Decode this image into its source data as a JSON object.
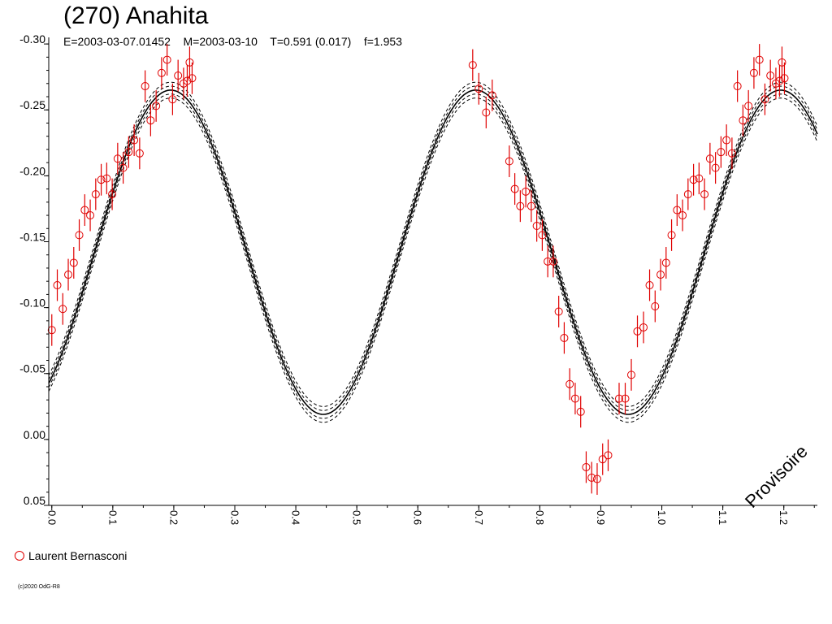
{
  "title": "(270) Anahita",
  "subtitle": "E=2003-03-07.01452    M=2003-03-10    T=0.591 (0.017)    f=1.953",
  "watermark": "Provisoire",
  "legend_label": "Laurent Bernasconi",
  "copyright": "(c)2020 OdG-R8",
  "colors": {
    "data": "#e00000",
    "model": "#000000",
    "axis": "#000000"
  },
  "chart_data": {
    "type": "scatter",
    "x_range": [
      -0.005,
      1.255
    ],
    "y_range": [
      -0.305,
      0.05
    ],
    "y_inverted": true,
    "x_ticks": [
      0.0,
      0.1,
      0.2,
      0.3,
      0.4,
      0.5,
      0.6,
      0.7,
      0.8,
      0.9,
      1.0,
      1.1,
      1.2
    ],
    "x_tick_labels": [
      "0.0",
      "0.1",
      "0.2",
      "0.3",
      "0.4",
      "0.5",
      "0.6",
      "0.7",
      "0.8",
      "0.9",
      "1.0",
      "1.1",
      "1.2"
    ],
    "y_ticks": [
      -0.3,
      -0.25,
      -0.2,
      -0.15,
      -0.1,
      -0.05,
      0.0,
      0.05
    ],
    "y_tick_labels": [
      "-0.30",
      "-0.25",
      "-0.20",
      "-0.15",
      "-0.10",
      "-0.05",
      "0.00",
      "0.05"
    ],
    "model": {
      "type": "line",
      "mean": -0.142,
      "amplitude": 0.123,
      "phase_of_maximum": 0.195,
      "period_in_phase": 0.5,
      "band_offsets": [
        -0.006,
        -0.003,
        0.003,
        0.006
      ]
    },
    "series": [
      {
        "name": "Laurent Bernasconi",
        "error": 0.012,
        "points": [
          [
            0.0,
            -0.083
          ],
          [
            0.009,
            -0.117
          ],
          [
            0.018,
            -0.099
          ],
          [
            0.027,
            -0.125
          ],
          [
            0.036,
            -0.134
          ],
          [
            0.045,
            -0.155
          ],
          [
            0.054,
            -0.174
          ],
          [
            0.063,
            -0.17
          ],
          [
            0.072,
            -0.186
          ],
          [
            0.081,
            -0.197
          ],
          [
            0.09,
            -0.198
          ],
          [
            0.099,
            -0.186
          ],
          [
            0.108,
            -0.213
          ],
          [
            0.117,
            -0.206
          ],
          [
            0.126,
            -0.218
          ],
          [
            0.135,
            -0.227
          ],
          [
            0.144,
            -0.217
          ],
          [
            0.153,
            -0.268
          ],
          [
            0.162,
            -0.242
          ],
          [
            0.171,
            -0.253
          ],
          [
            0.18,
            -0.278
          ],
          [
            0.189,
            -0.288
          ],
          [
            0.198,
            -0.258
          ],
          [
            0.207,
            -0.276
          ],
          [
            0.216,
            -0.27
          ],
          [
            0.222,
            -0.272
          ],
          [
            0.226,
            -0.286
          ],
          [
            0.23,
            -0.274
          ],
          [
            0.69,
            -0.284
          ],
          [
            0.7,
            -0.266
          ],
          [
            0.712,
            -0.248
          ],
          [
            0.722,
            -0.261
          ],
          [
            0.75,
            -0.211
          ],
          [
            0.759,
            -0.19
          ],
          [
            0.768,
            -0.177
          ],
          [
            0.777,
            -0.188
          ],
          [
            0.786,
            -0.177
          ],
          [
            0.795,
            -0.162
          ],
          [
            0.804,
            -0.155
          ],
          [
            0.813,
            -0.135
          ],
          [
            0.822,
            -0.135
          ],
          [
            0.831,
            -0.097
          ],
          [
            0.84,
            -0.077
          ],
          [
            0.849,
            -0.042
          ],
          [
            0.858,
            -0.031
          ],
          [
            0.867,
            -0.021
          ],
          [
            0.876,
            0.021
          ],
          [
            0.885,
            0.029
          ],
          [
            0.894,
            0.03
          ],
          [
            0.903,
            0.015
          ],
          [
            0.912,
            0.012
          ],
          [
            0.93,
            -0.031
          ],
          [
            0.94,
            -0.031
          ],
          [
            0.95,
            -0.049
          ],
          [
            0.96,
            -0.082
          ],
          [
            0.97,
            -0.085
          ],
          [
            0.98,
            -0.117
          ],
          [
            0.989,
            -0.101
          ],
          [
            0.998,
            -0.125
          ],
          [
            1.007,
            -0.134
          ],
          [
            1.016,
            -0.155
          ],
          [
            1.025,
            -0.174
          ],
          [
            1.034,
            -0.17
          ],
          [
            1.043,
            -0.186
          ],
          [
            1.052,
            -0.197
          ],
          [
            1.061,
            -0.198
          ],
          [
            1.07,
            -0.186
          ],
          [
            1.079,
            -0.213
          ],
          [
            1.088,
            -0.206
          ],
          [
            1.097,
            -0.218
          ],
          [
            1.106,
            -0.227
          ],
          [
            1.115,
            -0.217
          ],
          [
            1.124,
            -0.268
          ],
          [
            1.133,
            -0.242
          ],
          [
            1.142,
            -0.253
          ],
          [
            1.151,
            -0.278
          ],
          [
            1.16,
            -0.288
          ],
          [
            1.169,
            -0.258
          ],
          [
            1.178,
            -0.276
          ],
          [
            1.187,
            -0.27
          ],
          [
            1.193,
            -0.272
          ],
          [
            1.197,
            -0.286
          ],
          [
            1.201,
            -0.274
          ]
        ]
      }
    ]
  }
}
